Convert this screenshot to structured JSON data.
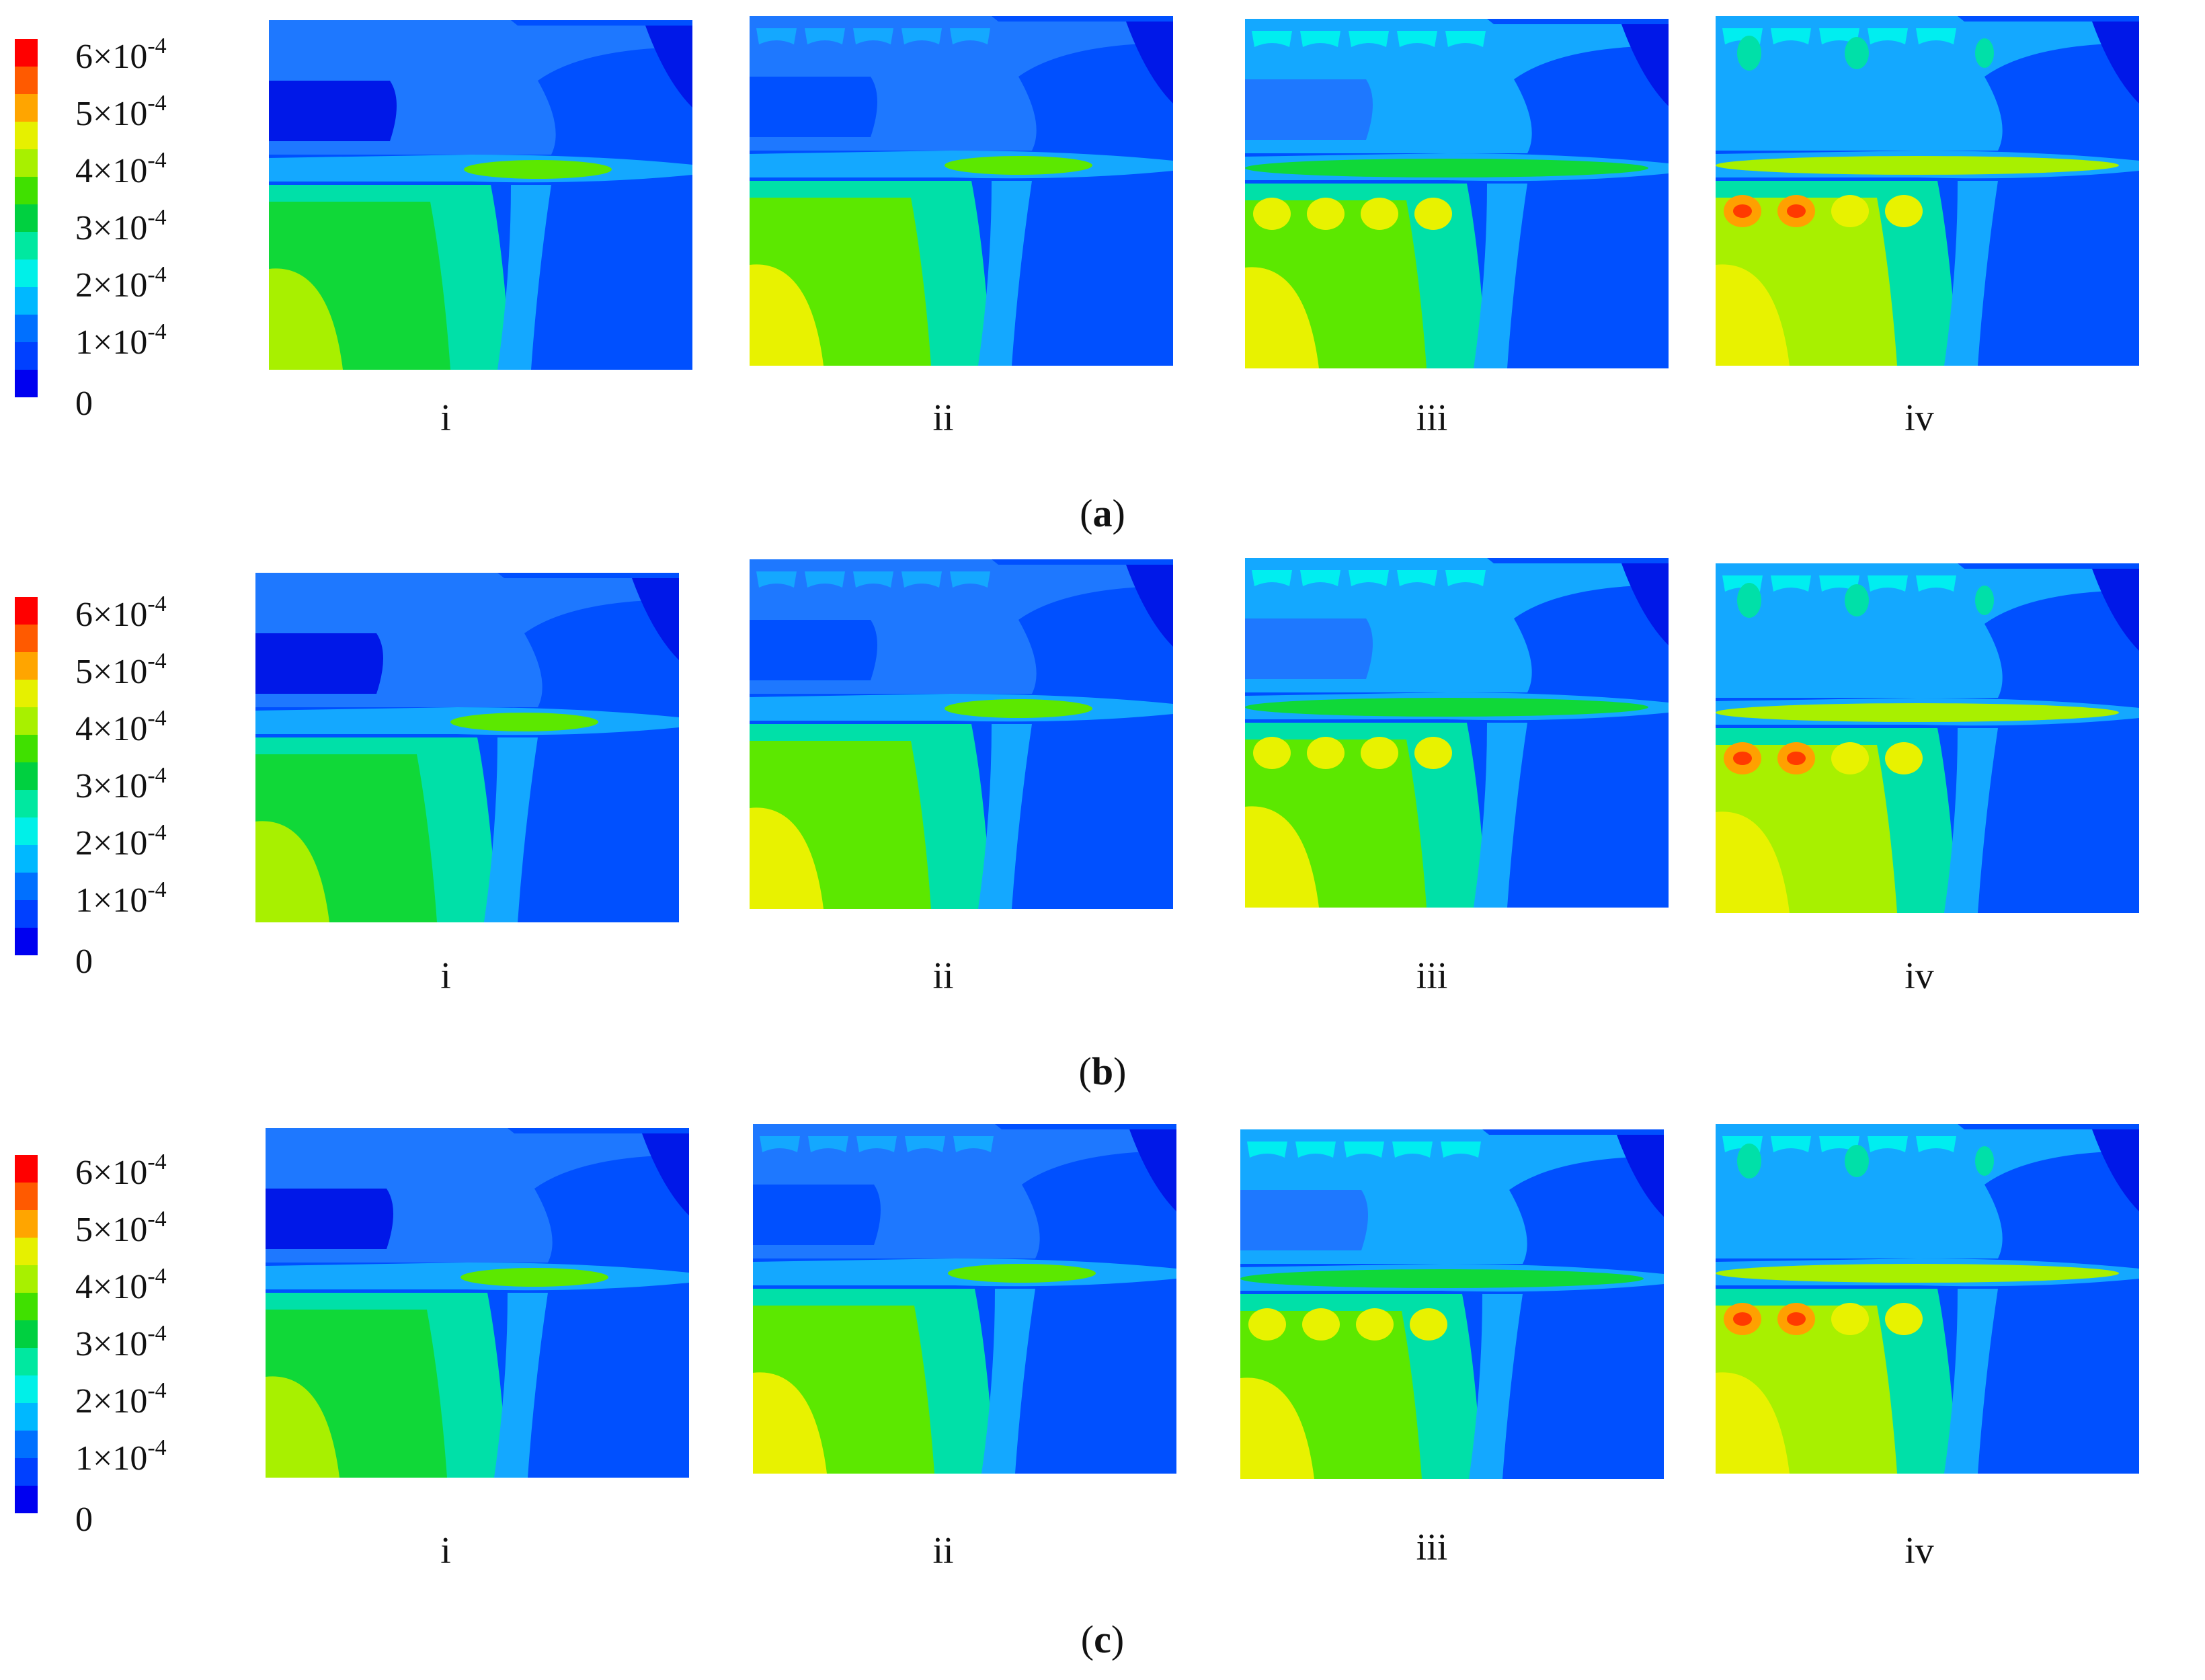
{
  "legend": {
    "ticks": [
      "6×10",
      "5×10",
      "4×10",
      "3×10",
      "2×10",
      "1×10",
      "0"
    ],
    "exponents": [
      "-4",
      "-4",
      "-4",
      "-4",
      "-4",
      "-4",
      ""
    ],
    "colors": [
      "#ff0000",
      "#ff5a00",
      "#ffa500",
      "#e6f000",
      "#a8f000",
      "#40e000",
      "#00d040",
      "#00e8a0",
      "#00f0e8",
      "#00b8ff",
      "#0070ff",
      "#0040ff",
      "#0000f0"
    ]
  },
  "panel_labels": [
    "i",
    "ii",
    "iii",
    "iv"
  ],
  "rows": [
    {
      "caption_open": "(",
      "caption_letter": "a",
      "caption_close": ")"
    },
    {
      "caption_open": "(",
      "caption_letter": "b",
      "caption_close": ")"
    },
    {
      "caption_open": "(",
      "caption_letter": "c",
      "caption_close": ")"
    }
  ]
}
